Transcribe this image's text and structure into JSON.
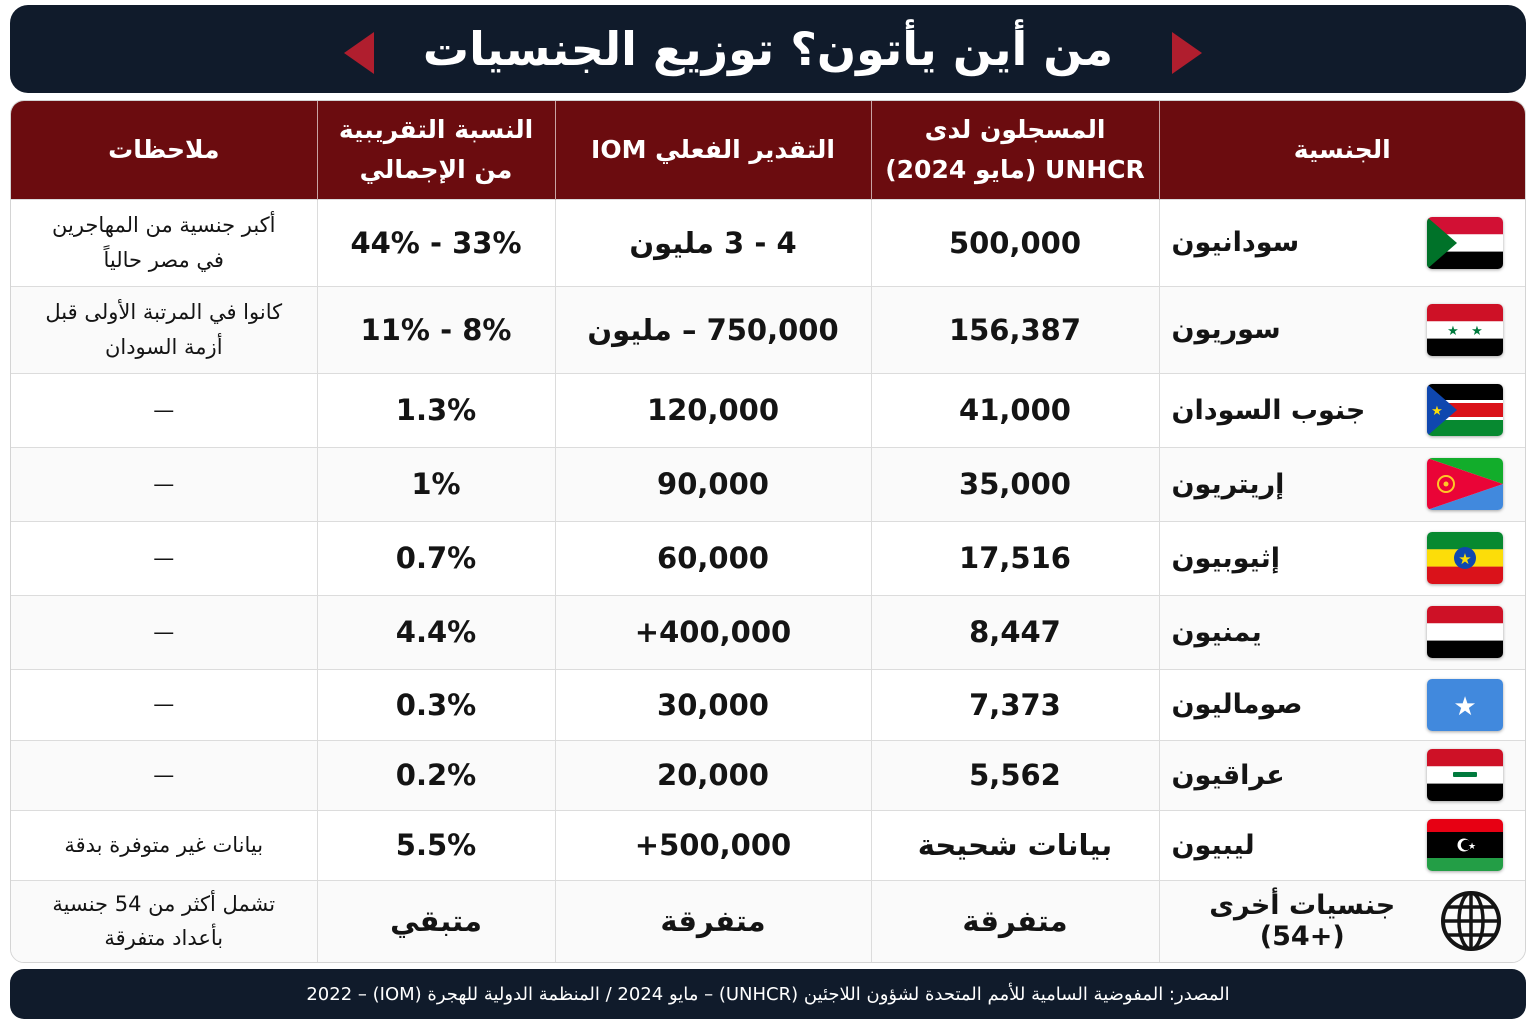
{
  "title": "من أين يأتون؟ توزيع الجنسيات",
  "headers": {
    "nationality": "الجنسية",
    "unhcr_line1": "المسجلون لدى",
    "unhcr_line2": "UNHCR (مايو 2024)",
    "iom": "التقدير الفعلي IOM",
    "share_line1": "النسبة التقريبية",
    "share_line2": "من الإجمالي",
    "notes": "ملاحظات"
  },
  "rows": [
    {
      "nationality": "سودانيون",
      "flag": "sudan-flag-icon",
      "unhcr": "500,000",
      "iom": "4 - 3 مليون",
      "share": "33% - 44%",
      "note_line1": "أكبر جنسية من المهاجرين",
      "note_line2": "في مصر حالياً"
    },
    {
      "nationality": "سوريون",
      "flag": "syria-flag-icon",
      "unhcr": "156,387",
      "iom": "750,000 – مليون",
      "share": "8% - 11%",
      "note_line1": "كانوا في المرتبة الأولى قبل",
      "note_line2": "أزمة السودان"
    },
    {
      "nationality": "جنوب السودان",
      "flag": "south-sudan-flag-icon",
      "unhcr": "41,000",
      "iom": "120,000",
      "share": "1.3%",
      "note_line1": "—",
      "note_line2": ""
    },
    {
      "nationality": "إريتريون",
      "flag": "eritrea-flag-icon",
      "unhcr": "35,000",
      "iom": "90,000",
      "share": "1%",
      "note_line1": "—",
      "note_line2": ""
    },
    {
      "nationality": "إثيوبيون",
      "flag": "ethiopia-flag-icon",
      "unhcr": "17,516",
      "iom": "60,000",
      "share": "0.7%",
      "note_line1": "—",
      "note_line2": ""
    },
    {
      "nationality": "يمنيون",
      "flag": "yemen-flag-icon",
      "unhcr": "8,447",
      "iom": "400,000+",
      "share": "4.4%",
      "note_line1": "—",
      "note_line2": ""
    },
    {
      "nationality": "صوماليون",
      "flag": "somalia-flag-icon",
      "unhcr": "7,373",
      "iom": "30,000",
      "share": "0.3%",
      "note_line1": "—",
      "note_line2": ""
    },
    {
      "nationality": "عراقيون",
      "flag": "iraq-flag-icon",
      "unhcr": "5,562",
      "iom": "20,000",
      "share": "0.2%",
      "note_line1": "—",
      "note_line2": ""
    },
    {
      "nationality": "ليبيون",
      "flag": "libya-flag-icon",
      "unhcr": "بيانات شحيحة",
      "iom": "500,000+",
      "share": "5.5%",
      "note_line1": "بيانات غير متوفرة بدقة",
      "note_line2": ""
    },
    {
      "nationality": "جنسيات أخرى (+54)",
      "flag": "globe-icon",
      "unhcr": "متفرقة",
      "iom": "متفرقة",
      "share": "متبقي",
      "note_line1": "تشمل أكثر من 54 جنسية",
      "note_line2": "بأعداد متفرقة"
    }
  ],
  "footer": "المصدر: المفوضية السامية للأمم المتحدة لشؤون اللاجئين (UNHCR) – مايو 2024 / المنظمة الدولية للهجرة (IOM) – 2022",
  "colors": {
    "title_bg": "#101b2b",
    "header_bg": "#6b0c0f",
    "arrow": "#b01e2e"
  }
}
